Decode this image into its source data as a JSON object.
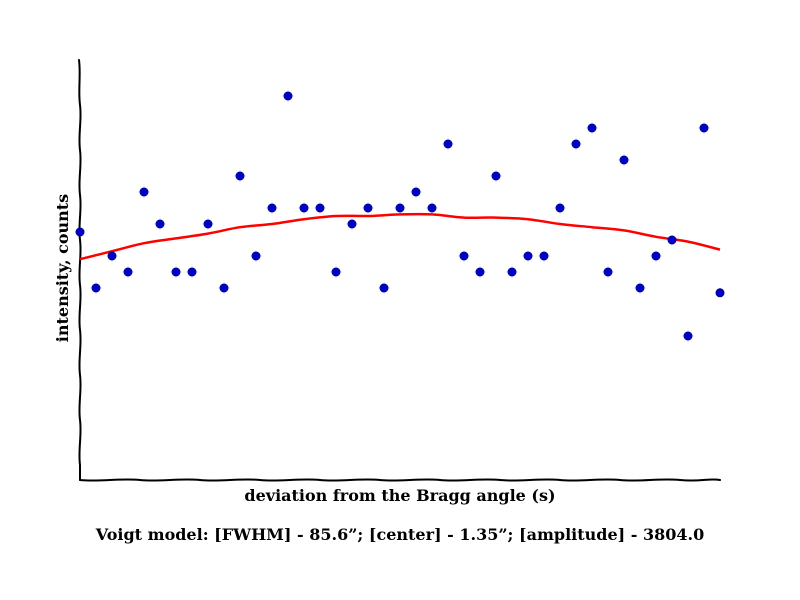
{
  "chart_data": {
    "type": "scatter",
    "title": "",
    "xlabel": "deviation from the Bragg angle (s)",
    "ylabel": "intensity, counts",
    "caption": "Voigt model:   [FWHM] - 85.6”; [center] - 1.35”; [amplitude] - 3804.0",
    "xlim": [
      0,
      40
    ],
    "ylim": [
      0,
      26.25
    ],
    "grid": false,
    "legend": "none",
    "series": [
      {
        "type": "scatter",
        "color": "#0000cc",
        "x": [
          0,
          1,
          2,
          3,
          4,
          5,
          6,
          7,
          8,
          9,
          10,
          11,
          12,
          13,
          14,
          15,
          16,
          17,
          18,
          19,
          20,
          21,
          22,
          23,
          24,
          25,
          26,
          27,
          28,
          29,
          30,
          31,
          32,
          33,
          34,
          35,
          36,
          37,
          38,
          39,
          40
        ],
        "y": [
          15.5,
          12,
          14,
          13,
          18,
          16,
          13,
          13,
          16,
          12,
          19,
          14,
          17,
          24,
          17,
          17,
          13,
          16,
          17,
          12,
          17,
          18,
          17,
          21,
          14,
          13,
          19,
          13,
          14,
          14,
          17,
          21,
          22,
          13,
          20,
          12,
          14,
          15,
          9,
          22,
          11.7
        ]
      },
      {
        "type": "line",
        "color": "#ff0000",
        "x": [
          0,
          2,
          4,
          6,
          8,
          10,
          12,
          14,
          16,
          18,
          20,
          22,
          24,
          26,
          28,
          30,
          32,
          34,
          36,
          38,
          40
        ],
        "y": [
          13.8,
          14.3,
          14.8,
          15.1,
          15.4,
          15.8,
          16.0,
          16.3,
          16.5,
          16.5,
          16.6,
          16.6,
          16.4,
          16.4,
          16.3,
          16.0,
          15.8,
          15.6,
          15.2,
          14.9,
          14.4
        ]
      }
    ]
  }
}
